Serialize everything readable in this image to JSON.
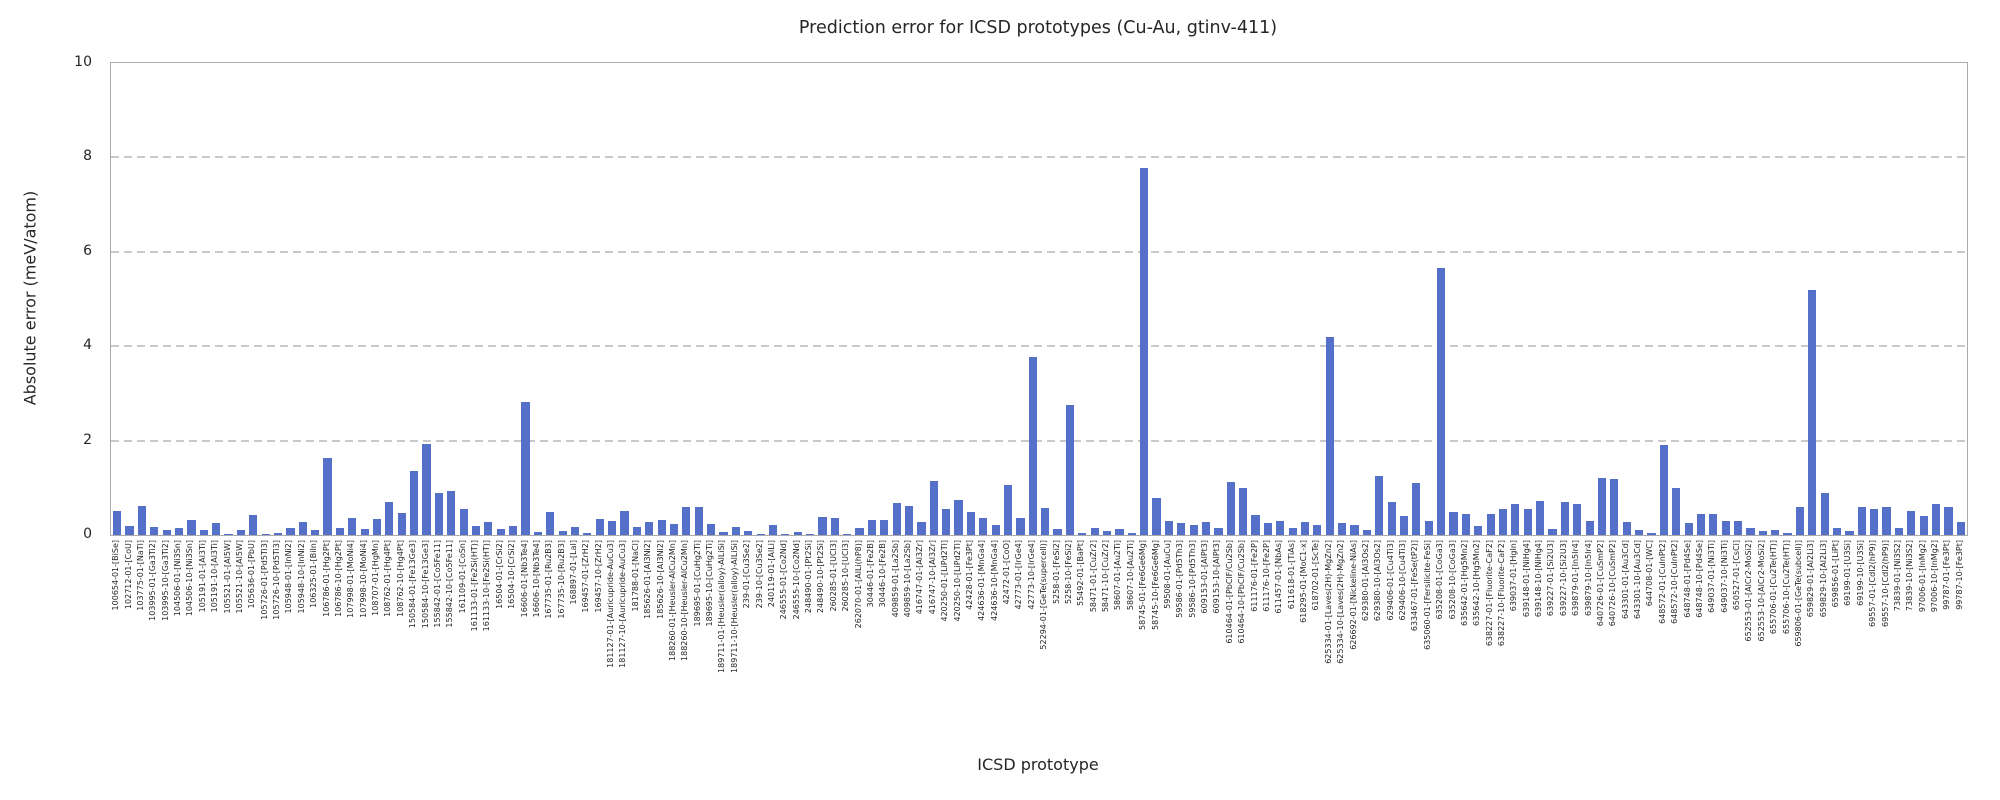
{
  "figure": {
    "title": "Prediction error for ICSD prototypes (Cu-Au, gtinv-411)",
    "xlabel": "ICSD prototype",
    "ylabel": "Absolute error (meV/atom)"
  },
  "chart_data": {
    "type": "bar",
    "title": "Prediction error for ICSD prototypes (Cu-Au, gtinv-411)",
    "xlabel": "ICSD prototype",
    "ylabel": "Absolute error (meV/atom)",
    "ylim": [
      0,
      10
    ],
    "yticks": [
      0,
      2,
      4,
      6,
      8,
      10
    ],
    "grid": "horizontal-dashed",
    "legend": "none",
    "bar_color": "#5470C8",
    "categories": [
      "100654-01-[BiSe]",
      "102712-01-[CoU]",
      "103775-01-[NaTl]",
      "103995-01-[Ga3Ti2]",
      "103995-10-[Ga3Ti2]",
      "104506-01-[Ni3Sn]",
      "104506-10-[Ni3Sn]",
      "105191-01-[Al3Ti]",
      "105191-10-[Al3Ti]",
      "105521-01-[Al5W]",
      "105521-10-[Al5W]",
      "105636-01-[PbU]",
      "105726-01-[Pd5Ti3]",
      "105726-10-[Pd5Ti3]",
      "105948-01-[InNi2]",
      "105948-10-[InNi2]",
      "106325-01-[BiIn]",
      "106786-01-[Hg2Pt]",
      "106786-10-[Hg2Pt]",
      "107998-01-[MoNi4]",
      "107998-10-[MoNi4]",
      "108707-01-[HgMn]",
      "108762-01-[Hg4Pt]",
      "108762-10-[Hg4Pt]",
      "150584-01-[Fe13Ge3]",
      "150584-10-[Fe13Ge3]",
      "155842-01-[Co5Fe11]",
      "155842-10-[Co5Fe11]",
      "161109-01-[CoSn]",
      "161133-01-[Fe2Si(HT)]",
      "161133-10-[Fe2Si(HT)]",
      "16504-01-[CrSi2]",
      "16504-10-[CrSi2]",
      "16606-01-[Nb3Te4]",
      "16606-10-[Nb3Te4]",
      "167735-01-[Ru2B3]",
      "167735-10-[Ru2B3]",
      "168897-01-[LaI]",
      "169457-01-[ZrH2]",
      "169457-10-[ZrH2]",
      "181127-01-[Auricupride-AuCu3]",
      "181127-10-[Auricupride-AuCu3]",
      "181788-01-[NaCl]",
      "185626-01-[Al3Ni2]",
      "185626-10-[Al3Ni2]",
      "188260-01-[Heusler-AlCu2Mn]",
      "188260-10-[Heusler-AlCu2Mn]",
      "189695-01-[CuHg2Ti]",
      "189695-10-[CuHg2Ti]",
      "189711-01-[Heusler(alloy)-AlLiSi]",
      "189711-10-[Heusler(alloy)-AlLiSi]",
      "239-01-[Cu3Se2]",
      "239-10-[Cu3Se2]",
      "240119-01-[AlLi]",
      "246555-01-[Co2Nd]",
      "246555-10-[Co2Nd]",
      "248490-01-[Pt2Si]",
      "248490-10-[Pt2Si]",
      "260285-01-[UCl3]",
      "260285-10-[UCl3]",
      "262070-01-[AlLi(hP8)]",
      "30446-01-[Fe2B]",
      "30446-10-[Fe2B]",
      "409859-01-[La2Sb]",
      "409859-10-[La2Sb]",
      "416747-01-[Al3Zr]",
      "416747-10-[Al3Zr]",
      "420250-01-[LiPd2Tl]",
      "420250-10-[LiPd2Tl]",
      "42428-01-[Fe3Pt]",
      "424636-01-[MnGa4]",
      "424636-10-[MnGa4]",
      "42472-01-[CoO]",
      "42773-01-[IrGe4]",
      "42773-10-[IrGe4]",
      "52294-01-[GeTe(supercell)]",
      "5258-01-[FeSi2]",
      "5258-10-[FeSi2]",
      "55492-01-[BaPt]",
      "58471-01-[CuZr2]",
      "58471-10-[CuZr2]",
      "58607-01-[Au2Ti]",
      "58607-10-[Au2Ti]",
      "58745-01-[Fe6Ge6Mg]",
      "58745-10-[Fe6Ge6Mg]",
      "59508-01-[AuCu]",
      "59586-01-[Pd5Th3]",
      "59586-10-[Pd5Th3]",
      "609153-01-[AlPt3]",
      "609153-10-[AlPt3]",
      "610464-01-[PbClF/Cu2Sb]",
      "610464-10-[PbClF/Cu2Sb]",
      "611176-01-[Fe2P]",
      "611176-10-[Fe2P]",
      "611457-01-[NbAs]",
      "611618-01-[TiAs]",
      "618295-01-[MoC1-x]",
      "618702-01-[ScTe]",
      "625334-01-[Laves(2H)-MgZn2]",
      "625334-10-[Laves(2H)-MgZn2]",
      "626692-01-[Nickeline-NiAs]",
      "629380-01-[Al3Os2]",
      "629380-10-[Al3Os2]",
      "629406-01-[Cu4Ti3]",
      "629406-10-[Cu4Ti3]",
      "633467-01-[FeSe(tP2)]",
      "635060-01-[Fersilicite-FeSi]",
      "635208-01-[CoGa3]",
      "635208-10-[CoGa3]",
      "635642-01-[Hg5Mn2]",
      "635642-10-[Hg5Mn2]",
      "638227-01-[Fluorite-CaF2]",
      "638227-10-[Fluorite-CaF2]",
      "639037-01-[HgIn]",
      "639148-01-[NiHg4]",
      "639148-10-[NiHg4]",
      "639227-01-[Si2U3]",
      "639227-10-[Si2U3]",
      "639879-01-[In5Ir4]",
      "639879-10-[In5Ir4]",
      "640726-01-[CuSmP2]",
      "640726-10-[CuSmP2]",
      "643301-01-[Au3Cd]",
      "643301-10-[Au3Cd]",
      "644708-01-[WC]",
      "648572-01-[CuInPt2]",
      "648572-10-[CuInPt2]",
      "648748-01-[Pd4Se]",
      "648748-10-[Pd4Se]",
      "649037-01-[Ni3Ti]",
      "649037-10-[Ni3Ti]",
      "650527-01-[CsCl]",
      "652553-01-[AlCr2-MoSi2]",
      "652553-10-[AlCr2-MoSi2]",
      "655706-01-[Cu2Te(HT)]",
      "655706-10-[Cu2Te(HT)]",
      "659806-01-[GeTe(subcell)]",
      "659829-01-[Al2Li3]",
      "659829-10-[Al2Li3]",
      "659856-01-[LiPt]",
      "69199-01-[U3Si]",
      "69199-10-[U3Si]",
      "69557-01-[CdI2(hP9)]",
      "69557-10-[CdI2(hP9)]",
      "73839-01-[Ni3S2]",
      "73839-10-[Ni3S2]",
      "97006-01-[InMg2]",
      "97006-10-[InMg2]",
      "99787-01-[Fe3Pt]",
      "99787-10-[Fe3Pt]"
    ],
    "values": [
      0.5,
      0.2,
      0.62,
      0.17,
      0.1,
      0.14,
      0.32,
      0.1,
      0.25,
      0.03,
      0.1,
      0.42,
      0.02,
      0.05,
      0.15,
      0.28,
      0.1,
      1.63,
      0.15,
      0.35,
      0.12,
      0.33,
      0.7,
      0.46,
      1.36,
      1.93,
      0.88,
      0.94,
      0.56,
      0.19,
      0.28,
      0.13,
      0.19,
      2.82,
      0.07,
      0.48,
      0.09,
      0.16,
      0.05,
      0.34,
      0.3,
      0.5,
      0.18,
      0.28,
      0.32,
      0.23,
      0.6,
      0.6,
      0.24,
      0.07,
      0.16,
      0.09,
      0.03,
      0.21,
      0.02,
      0.07,
      0.02,
      0.39,
      0.37,
      0.03,
      0.14,
      0.32,
      0.32,
      0.67,
      0.62,
      0.28,
      1.15,
      0.55,
      0.74,
      0.48,
      0.35,
      0.22,
      1.05,
      0.35,
      3.78,
      0.57,
      0.12,
      2.75,
      0.05,
      0.15,
      0.08,
      0.12,
      0.05,
      7.78,
      0.78,
      0.3,
      0.25,
      0.22,
      0.28,
      0.15,
      1.12,
      1.0,
      0.42,
      0.25,
      0.3,
      0.15,
      0.28,
      0.22,
      4.2,
      0.25,
      0.22,
      0.1,
      1.25,
      0.7,
      0.4,
      1.1,
      0.3,
      5.65,
      0.48,
      0.45,
      0.2,
      0.45,
      0.55,
      0.65,
      0.55,
      0.72,
      0.12,
      0.7,
      0.65,
      0.3,
      1.2,
      1.18,
      0.28,
      0.1,
      0.05,
      1.9,
      1.0,
      0.25,
      0.45,
      0.45,
      0.3,
      0.3,
      0.15,
      0.08,
      0.1,
      0.05,
      0.6,
      5.2,
      0.9,
      0.15,
      0.08,
      0.6,
      0.55,
      0.6,
      0.15,
      0.5,
      0.4,
      0.65,
      0.6,
      0.28
    ]
  }
}
